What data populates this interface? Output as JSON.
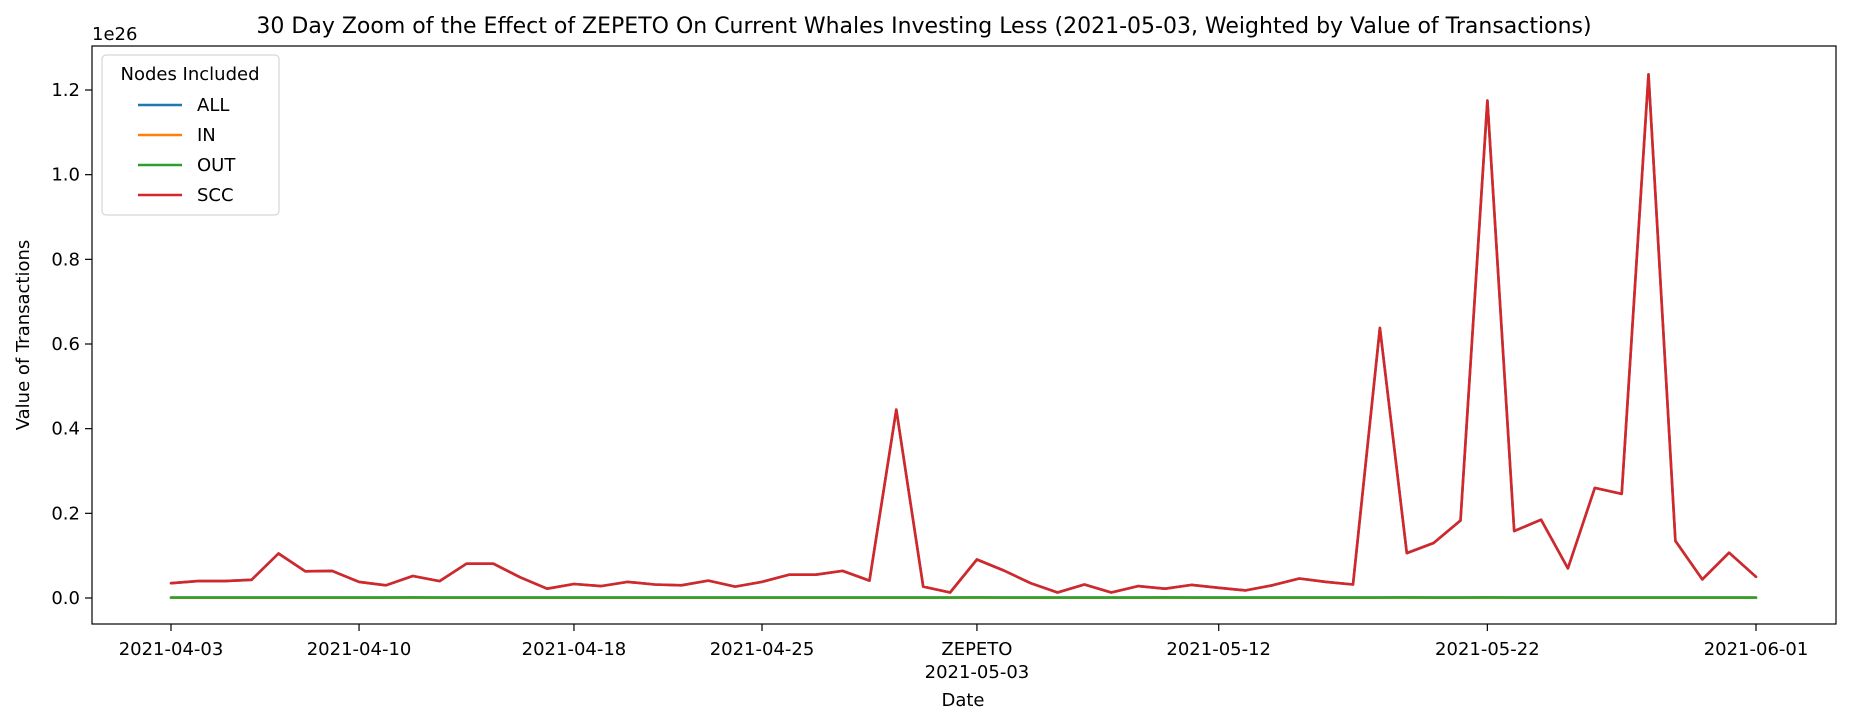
{
  "chart_data": {
    "type": "line",
    "title": "30 Day Zoom of the Effect of ZEPETO On Current Whales Investing Less (2021-05-03, Weighted by Value of Transactions)",
    "xlabel": "Date",
    "ylabel": "Value of Transactions",
    "y_offset_label": "1e26",
    "ylim": [
      -0.06,
      1.3
    ],
    "y_ticks": [
      0.0,
      0.2,
      0.4,
      0.6,
      0.8,
      1.0,
      1.2
    ],
    "y_tick_labels": [
      "0.0",
      "0.2",
      "0.4",
      "0.6",
      "0.8",
      "1.0",
      "1.2"
    ],
    "x_ticks": [
      "2021-04-03",
      "2021-04-10",
      "2021-04-18",
      "2021-04-25",
      "2021-05-03",
      "2021-05-12",
      "2021-05-22",
      "2021-06-01"
    ],
    "x_tick_labels": [
      "2021-04-03",
      "2021-04-10",
      "2021-04-18",
      "2021-04-25",
      "2021-05-03",
      "2021-05-12",
      "2021-05-22",
      "2021-06-01"
    ],
    "event_label": "ZEPETO",
    "legend": {
      "title": "Nodes Included",
      "position": "upper-left"
    },
    "x": [
      "2021-04-03",
      "2021-04-04",
      "2021-04-05",
      "2021-04-06",
      "2021-04-07",
      "2021-04-08",
      "2021-04-09",
      "2021-04-10",
      "2021-04-11",
      "2021-04-12",
      "2021-04-13",
      "2021-04-14",
      "2021-04-15",
      "2021-04-16",
      "2021-04-17",
      "2021-04-18",
      "2021-04-19",
      "2021-04-20",
      "2021-04-21",
      "2021-04-22",
      "2021-04-23",
      "2021-04-24",
      "2021-04-25",
      "2021-04-26",
      "2021-04-27",
      "2021-04-28",
      "2021-04-29",
      "2021-04-30",
      "2021-05-01",
      "2021-05-02",
      "2021-05-03",
      "2021-05-04",
      "2021-05-05",
      "2021-05-06",
      "2021-05-07",
      "2021-05-08",
      "2021-05-09",
      "2021-05-10",
      "2021-05-11",
      "2021-05-12",
      "2021-05-13",
      "2021-05-14",
      "2021-05-15",
      "2021-05-16",
      "2021-05-17",
      "2021-05-18",
      "2021-05-19",
      "2021-05-20",
      "2021-05-21",
      "2021-05-22",
      "2021-05-23",
      "2021-05-24",
      "2021-05-25",
      "2021-05-26",
      "2021-05-27",
      "2021-05-28",
      "2021-05-29",
      "2021-05-30",
      "2021-05-31",
      "2021-06-01"
    ],
    "series": [
      {
        "name": "ALL",
        "color": "#1f77b4",
        "values": [
          0.035,
          0.04,
          0.04,
          0.043,
          0.105,
          0.063,
          0.064,
          0.038,
          0.03,
          0.052,
          0.04,
          0.081,
          0.081,
          0.049,
          0.022,
          0.033,
          0.028,
          0.038,
          0.032,
          0.03,
          0.041,
          0.027,
          0.038,
          0.055,
          0.055,
          0.064,
          0.041,
          0.445,
          0.027,
          0.013,
          0.091,
          0.065,
          0.035,
          0.013,
          0.032,
          0.013,
          0.028,
          0.022,
          0.031,
          0.024,
          0.018,
          0.03,
          0.046,
          0.038,
          0.032,
          0.638,
          0.106,
          0.13,
          0.183,
          1.175,
          0.158,
          0.185,
          0.07,
          0.26,
          0.246,
          1.237,
          0.135,
          0.044,
          0.107,
          0.05
        ]
      },
      {
        "name": "IN",
        "color": "#ff7f0e",
        "values": [
          0.001,
          0.001,
          0.001,
          0.001,
          0.001,
          0.001,
          0.001,
          0.001,
          0.001,
          0.001,
          0.001,
          0.001,
          0.001,
          0.001,
          0.001,
          0.001,
          0.001,
          0.001,
          0.001,
          0.001,
          0.001,
          0.001,
          0.001,
          0.001,
          0.001,
          0.001,
          0.001,
          0.001,
          0.001,
          0.001,
          0.001,
          0.001,
          0.001,
          0.001,
          0.001,
          0.001,
          0.001,
          0.001,
          0.001,
          0.001,
          0.001,
          0.001,
          0.001,
          0.001,
          0.001,
          0.001,
          0.001,
          0.001,
          0.001,
          0.001,
          0.001,
          0.001,
          0.001,
          0.001,
          0.001,
          0.001,
          0.001,
          0.001,
          0.001,
          0.001
        ]
      },
      {
        "name": "OUT",
        "color": "#2ca02c",
        "values": [
          0.001,
          0.001,
          0.001,
          0.001,
          0.001,
          0.001,
          0.001,
          0.001,
          0.001,
          0.0015,
          0.001,
          0.001,
          0.001,
          0.001,
          0.001,
          0.001,
          0.001,
          0.001,
          0.001,
          0.001,
          0.001,
          0.001,
          0.001,
          0.001,
          0.001,
          0.001,
          0.001,
          0.001,
          0.001,
          0.001,
          0.0015,
          0.001,
          0.001,
          0.001,
          0.001,
          0.001,
          0.001,
          0.0015,
          0.001,
          0.001,
          0.001,
          0.001,
          0.001,
          0.001,
          0.001,
          0.001,
          0.0015,
          0.001,
          0.001,
          0.0015,
          0.001,
          0.001,
          0.001,
          0.001,
          0.001,
          0.001,
          0.001,
          0.001,
          0.001,
          0.001
        ]
      },
      {
        "name": "SCC",
        "color": "#d62728",
        "values": [
          0.035,
          0.04,
          0.04,
          0.043,
          0.105,
          0.063,
          0.064,
          0.038,
          0.03,
          0.052,
          0.04,
          0.081,
          0.081,
          0.049,
          0.022,
          0.033,
          0.028,
          0.038,
          0.032,
          0.03,
          0.041,
          0.027,
          0.038,
          0.055,
          0.055,
          0.064,
          0.041,
          0.445,
          0.027,
          0.013,
          0.091,
          0.065,
          0.035,
          0.013,
          0.032,
          0.013,
          0.028,
          0.022,
          0.031,
          0.024,
          0.018,
          0.03,
          0.046,
          0.038,
          0.032,
          0.638,
          0.106,
          0.13,
          0.183,
          1.175,
          0.158,
          0.185,
          0.07,
          0.26,
          0.246,
          1.237,
          0.135,
          0.044,
          0.107,
          0.05
        ]
      }
    ]
  }
}
